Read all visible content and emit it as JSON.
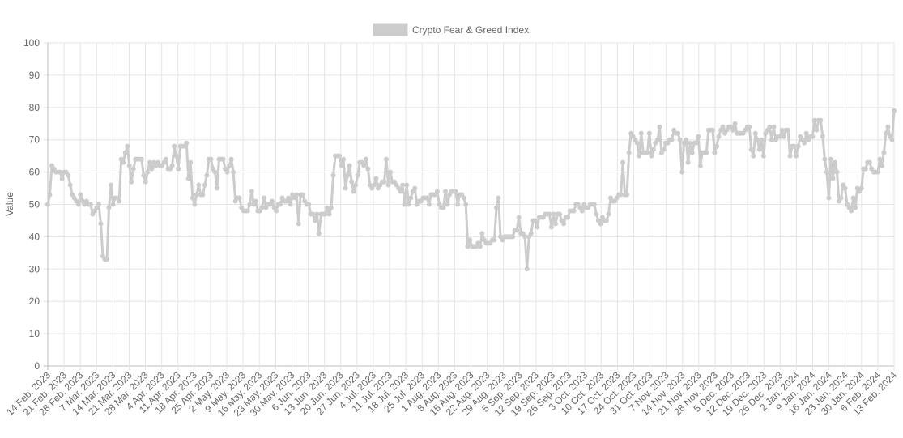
{
  "chart_data": {
    "type": "line",
    "ylabel": "Value",
    "ylim": [
      0,
      100
    ],
    "yticks": [
      0,
      10,
      20,
      30,
      40,
      50,
      60,
      70,
      80,
      90,
      100
    ],
    "grid": true,
    "legend_position": "top",
    "series_color": "#cccccc",
    "x_tick_labels": [
      "14 Feb. 2023",
      "21 Feb. 2023",
      "28 Feb. 2023",
      "7 Mar. 2023",
      "14 Mar. 2023",
      "21 Mar. 2023",
      "28 Mar. 2023",
      "4 Apr. 2023",
      "11 Apr. 2023",
      "18 Apr. 2023",
      "25 Apr. 2023",
      "2 May. 2023",
      "9 May. 2023",
      "16 May. 2023",
      "23 May. 2023",
      "30 May. 2023",
      "6 Jun. 2023",
      "13 Jun. 2023",
      "20 Jun. 2023",
      "27 Jun. 2023",
      "4 Jul. 2023",
      "11 Jul. 2023",
      "18 Jul. 2023",
      "25 Jul. 2023",
      "1 Aug. 2023",
      "8 Aug. 2023",
      "15 Aug. 2023",
      "22 Aug. 2023",
      "29 Aug. 2023",
      "5 Sep. 2023",
      "12 Sep. 2023",
      "19 Sep. 2023",
      "26 Sep. 2023",
      "3 Oct. 2023",
      "10 Oct. 2023",
      "17 Oct. 2023",
      "24 Oct. 2023",
      "31 Oct. 2023",
      "7 Nov. 2023",
      "14 Nov. 2023",
      "21 Nov. 2023",
      "28 Nov. 2023",
      "5 Dec. 2023",
      "12 Dec. 2023",
      "19 Dec. 2023",
      "26 Dec. 2023",
      "2 Jan. 2024",
      "9 Jan. 2024",
      "16 Jan. 2024",
      "23 Jan. 2024",
      "30 Jan. 2024",
      "6 Feb. 2024",
      "13 Feb. 2024"
    ],
    "series": [
      {
        "name": "Crypto Fear & Greed Index",
        "values": [
          50,
          53,
          62,
          61,
          60,
          60,
          60,
          58,
          60,
          60,
          59,
          56,
          53,
          52,
          51,
          50,
          53,
          51,
          50,
          51,
          50,
          50,
          47,
          48,
          49,
          50,
          44,
          34,
          33,
          33,
          49,
          56,
          50,
          52,
          52,
          51,
          64,
          63,
          66,
          68,
          62,
          57,
          61,
          64,
          64,
          64,
          64,
          59,
          57,
          60,
          63,
          61,
          63,
          62,
          63,
          62,
          62,
          63,
          64,
          61,
          61,
          62,
          68,
          65,
          61,
          68,
          68,
          68,
          69,
          58,
          63,
          52,
          50,
          53,
          56,
          53,
          53,
          56,
          59,
          64,
          64,
          61,
          60,
          55,
          64,
          64,
          64,
          61,
          60,
          62,
          64,
          60,
          51,
          52,
          52,
          49,
          48,
          48,
          48,
          50,
          54,
          50,
          51,
          48,
          48,
          49,
          52,
          49,
          50,
          50,
          51,
          49,
          48,
          50,
          50,
          52,
          51,
          51,
          52,
          50,
          53,
          52,
          53,
          44,
          53,
          53,
          51,
          50,
          50,
          47,
          47,
          45,
          47,
          41,
          47,
          47,
          47,
          49,
          47,
          49,
          59,
          65,
          65,
          65,
          62,
          64,
          55,
          59,
          62,
          57,
          54,
          56,
          59,
          63,
          63,
          62,
          64,
          61,
          56,
          55,
          56,
          58,
          55,
          56,
          57,
          57,
          64,
          56,
          60,
          57,
          57,
          56,
          55,
          54,
          56,
          50,
          56,
          50,
          52,
          54,
          55,
          50,
          51,
          51,
          52,
          52,
          52,
          50,
          53,
          53,
          53,
          54,
          50,
          49,
          49,
          54,
          50,
          53,
          54,
          54,
          54,
          50,
          53,
          53,
          52,
          50,
          37,
          39,
          37,
          37,
          37,
          38,
          37,
          41,
          39,
          38,
          38,
          38,
          39,
          39,
          49,
          52,
          40,
          39,
          40,
          40,
          40,
          40,
          40,
          42,
          42,
          46,
          41,
          41,
          40,
          30,
          40,
          41,
          45,
          45,
          43,
          46,
          46,
          46,
          47,
          47,
          47,
          43,
          47,
          44,
          47,
          47,
          45,
          44,
          46,
          46,
          48,
          48,
          48,
          50,
          50,
          49,
          48,
          50,
          49,
          49,
          50,
          50,
          50,
          47,
          45,
          44,
          46,
          45,
          45,
          47,
          52,
          51,
          51,
          52,
          53,
          53,
          63,
          53,
          53,
          66,
          72,
          71,
          70,
          69,
          65,
          72,
          66,
          66,
          66,
          72,
          65,
          67,
          69,
          70,
          74,
          66,
          67,
          69,
          69,
          70,
          70,
          73,
          72,
          72,
          70,
          60,
          69,
          70,
          63,
          69,
          66,
          69,
          69,
          71,
          62,
          66,
          66,
          66,
          73,
          73,
          73,
          66,
          68,
          71,
          73,
          74,
          72,
          73,
          74,
          74,
          73,
          75,
          72,
          72,
          72,
          72,
          73,
          74,
          74,
          67,
          65,
          72,
          70,
          67,
          70,
          65,
          72,
          73,
          74,
          70,
          74,
          70,
          71,
          71,
          73,
          71,
          73,
          73,
          65,
          68,
          68,
          65,
          68,
          71,
          70,
          69,
          72,
          70,
          71,
          71,
          76,
          73,
          76,
          76,
          71,
          64,
          60,
          52,
          64,
          58,
          63,
          60,
          51,
          52,
          56,
          55,
          50,
          49,
          48,
          52,
          49,
          55,
          54,
          55,
          61,
          61,
          63,
          63,
          61,
          60,
          60,
          60,
          64,
          62,
          66,
          72,
          74,
          71,
          70,
          79
        ]
      }
    ]
  }
}
